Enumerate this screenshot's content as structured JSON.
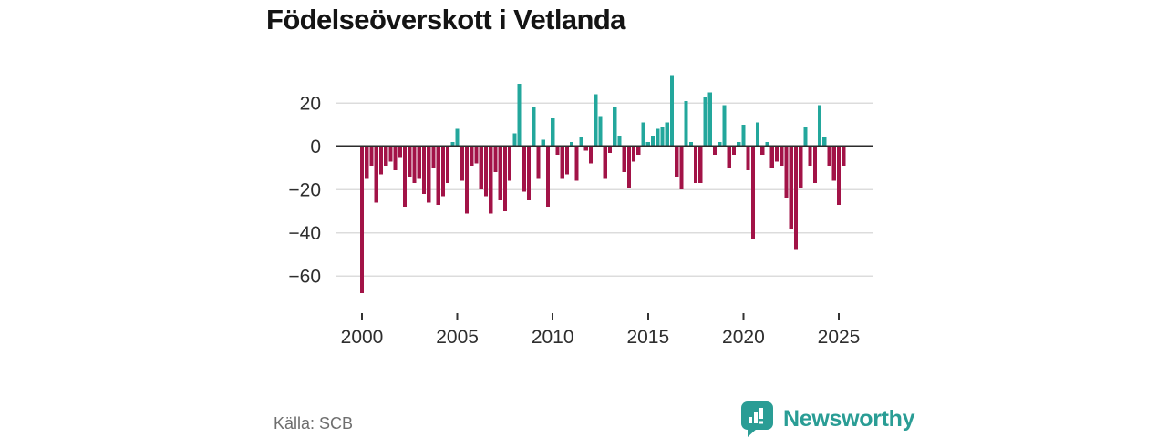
{
  "title": "Födelseöverskott i Vetlanda",
  "source": "Källa: SCB",
  "branding": {
    "logo_text": "Newsworthy",
    "logo_color": "#2a9d95"
  },
  "chart_data": {
    "type": "bar",
    "title": "Födelseöverskott i Vetlanda",
    "x_freq": "quarterly",
    "x_start": "2000 Q1",
    "x_end": "2025 Q2",
    "values": [
      -68,
      -15,
      -9,
      -26,
      -13,
      -9,
      -7,
      -11,
      -5,
      -28,
      -14,
      -17,
      -15,
      -22,
      -26,
      -10,
      -27,
      -23,
      -17,
      2,
      8,
      -16,
      -31,
      -9,
      -8,
      -20,
      -23,
      -31,
      -12,
      -25,
      -30,
      -16,
      6,
      29,
      -21,
      -25,
      18,
      -15,
      3,
      -28,
      13,
      -4,
      -15,
      -13,
      2,
      -16,
      4,
      -2,
      -8,
      24,
      14,
      -15,
      -3,
      18,
      5,
      -12,
      -19,
      -7,
      -4,
      11,
      2,
      5,
      8,
      9,
      11,
      33,
      -14,
      -20,
      21,
      2,
      -17,
      -17,
      23,
      25,
      -4,
      2,
      19,
      -10,
      -4,
      2,
      10,
      -11,
      -43,
      11,
      -4,
      2,
      -10,
      -7,
      -9,
      -24,
      -38,
      -48,
      -19,
      9,
      -9,
      -17,
      19,
      4,
      -9,
      -16,
      -27,
      -9
    ],
    "x_tick_labels": [
      "2000",
      "2005",
      "2010",
      "2015",
      "2020",
      "2025"
    ],
    "x_ticks_every_n_bars": 20,
    "y_ticks": [
      20,
      0,
      -20,
      -40,
      -60
    ],
    "y_tick_labels": [
      "20",
      "0",
      "−20",
      "−40",
      "−60"
    ],
    "ylim": [
      -70,
      36
    ],
    "grid": true,
    "legend": false,
    "positive_color": "#23a79c",
    "negative_color": "#a21347",
    "zero_line_color": "#2b2b2b",
    "grid_color": "#dcdcdc"
  }
}
